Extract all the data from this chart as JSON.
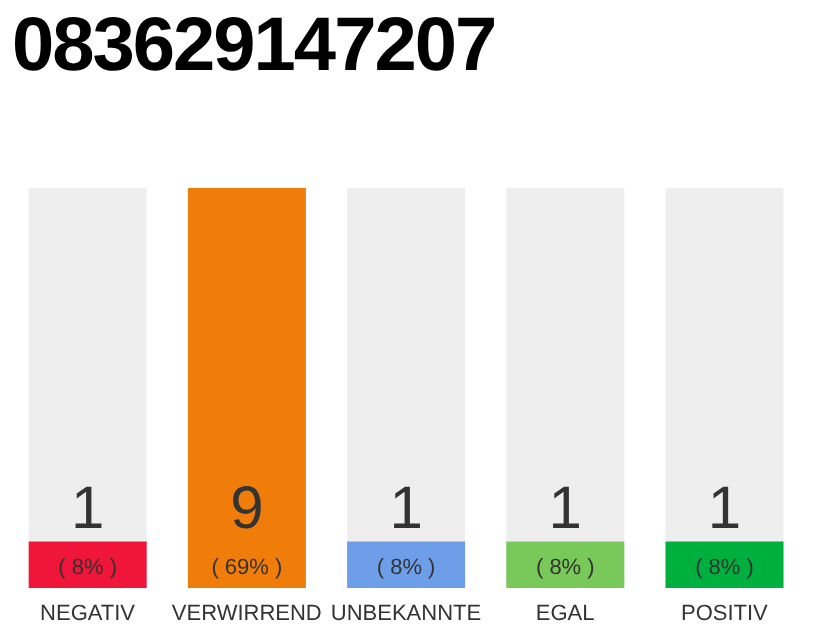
{
  "chart_data": {
    "type": "bar",
    "title": "083629147207",
    "categories": [
      "NEGATIV",
      "VERWIRREND",
      "UNBEKANNTE",
      "EGAL",
      "POSITIV"
    ],
    "values": [
      8,
      69,
      8,
      8,
      8
    ],
    "colors": [
      "#f0163a",
      "#f07d0a",
      "#6e9ee8",
      "#78c85a",
      "#00b03f"
    ],
    "value_labels": [
      "( 8% )",
      "( 69% )",
      "( 8% )",
      "( 8% )",
      "( 8% )"
    ],
    "annotations": [
      "1",
      "9",
      "1",
      "1",
      "1"
    ],
    "tick_labels": "x"
  }
}
